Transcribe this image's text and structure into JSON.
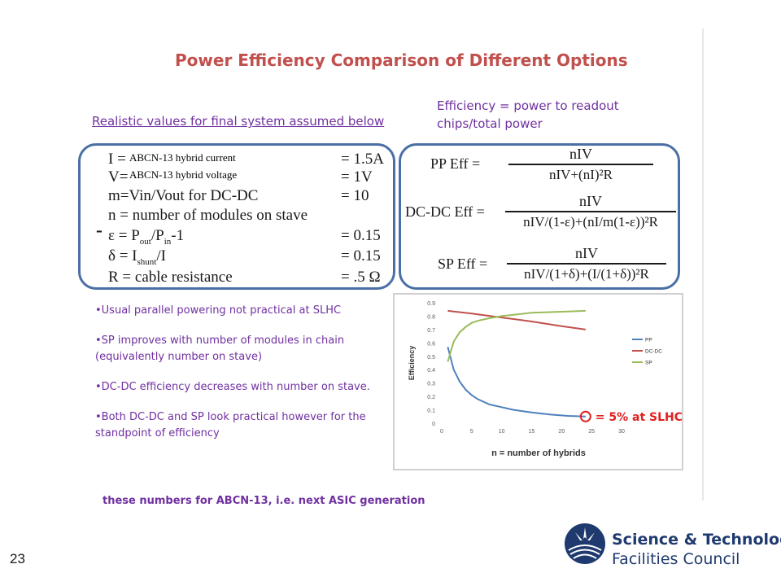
{
  "slide": {
    "title": "Power Efficiency Comparison of Different Options",
    "left_header": "Realistic values for final system assumed below",
    "right_header_line1": "Efficiency = power to readout",
    "right_header_line2": "chips/total power",
    "slide_number": "23"
  },
  "values_box": {
    "rows": [
      {
        "left": "I =",
        "right": "= 1.5A"
      },
      {
        "left": "V=",
        "right": "= 1V"
      },
      {
        "left": "m=Vin/Vout for DC-DC",
        "right": "= 10"
      },
      {
        "left": "n = number of modules on stave",
        "right": ""
      },
      {
        "left": "ε = P",
        "sub1": "out",
        "mid": "/P",
        "sub2": "in",
        "tail": "-1",
        "right": "= 0.15"
      },
      {
        "left": "δ = I",
        "sub1": "shunt",
        "mid": "/I",
        "sub2": "",
        "tail": "",
        "right": "= 0.15"
      },
      {
        "left": "R = cable resistance",
        "right": "= .5 Ω"
      }
    ],
    "overlay_current": "ABCN-13 hybrid current",
    "overlay_voltage": "ABCN-13 hybrid voltage",
    "dash_mark": "-"
  },
  "formulas": [
    {
      "name": "PP  Eff  =",
      "num": "nIV",
      "den": "nIV+(nI)²R"
    },
    {
      "name": "DC-DC  Eff  =",
      "num": "nIV",
      "den": "nIV/(1-ε)+(nI/m(1-ε))²R"
    },
    {
      "name": "SP  Eff  =",
      "num": "nIV",
      "den": "nIV/(1+δ)+(I/(1+δ))²R"
    }
  ],
  "bullets": [
    "•Usual parallel powering not practical at SLHC",
    "•SP improves with number of modules in chain (equivalently number on stave)",
    "•DC-DC efficiency decreases with number on stave.",
    "•Both DC-DC and SP look practical however for the standpoint of efficiency"
  ],
  "footnote": "these numbers for ABCN-13, i.e. next ASIC generation",
  "logo": {
    "line1": "Science & Technology",
    "line2": "Facilities Council"
  },
  "chart_data": {
    "type": "line",
    "ylabel": "Efficiency",
    "xlabel": "",
    "x_ticks": [
      "0",
      "5",
      "10",
      "15",
      "20",
      "25",
      "30"
    ],
    "y_ticks": [
      "0",
      "0.1",
      "0.2",
      "0.3",
      "0.4",
      "0.5",
      "0.6",
      "0.7",
      "0.8",
      "0.9"
    ],
    "xlim": [
      0,
      30
    ],
    "ylim": [
      0,
      0.9
    ],
    "caption": "n = number of hybrids",
    "annotation": "= 5% at SLHC",
    "annotation_point": [
      24,
      0.05
    ],
    "legend_position": "right",
    "series": [
      {
        "name": "PP",
        "color": "#4f81bd",
        "x": [
          1,
          2,
          3,
          4,
          5,
          6,
          8,
          10,
          12,
          15,
          18,
          21,
          24
        ],
        "y": [
          0.57,
          0.4,
          0.31,
          0.25,
          0.21,
          0.18,
          0.14,
          0.12,
          0.1,
          0.08,
          0.065,
          0.055,
          0.05
        ]
      },
      {
        "name": "DC-DC",
        "color": "#c0504d",
        "x": [
          1,
          5,
          10,
          15,
          20,
          24
        ],
        "y": [
          0.84,
          0.82,
          0.79,
          0.76,
          0.725,
          0.7
        ]
      },
      {
        "name": "SP",
        "color": "#9bbb59",
        "x": [
          1,
          2,
          3,
          4,
          5,
          6,
          8,
          10,
          12,
          15,
          18,
          21,
          24
        ],
        "y": [
          0.46,
          0.61,
          0.68,
          0.72,
          0.75,
          0.765,
          0.785,
          0.8,
          0.81,
          0.825,
          0.83,
          0.835,
          0.84
        ]
      }
    ]
  }
}
